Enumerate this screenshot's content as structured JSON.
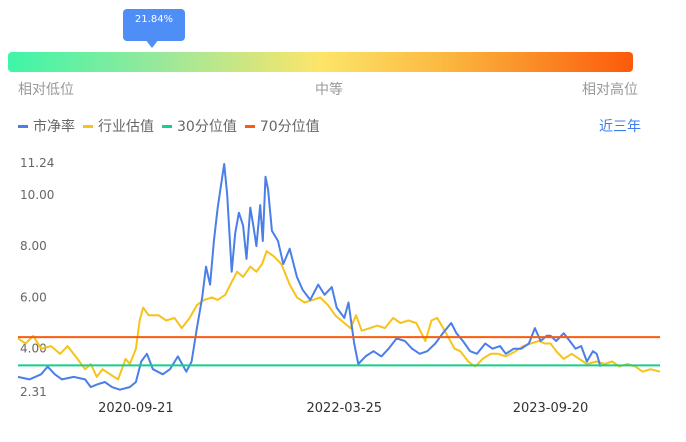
{
  "gauge": {
    "percentile_text": "21.84%",
    "percentile": 21.84,
    "low_label": "相对低位",
    "mid_label": "中等",
    "high_label": "相对高位"
  },
  "legend": {
    "pb_label": "市净率",
    "industry_label": "行业估值",
    "p30_label": "30分位值",
    "p70_label": "70分位值"
  },
  "range_button": "近三年",
  "colors": {
    "pb": "#4a7ee8",
    "industry": "#f7c31b",
    "p30": "#15cf8b",
    "p70": "#fa5b0c",
    "tooltip": "#4f8ef7"
  },
  "chart_data": {
    "type": "line",
    "ylim": [
      2.31,
      11.24
    ],
    "y_ticks": [
      "11.24",
      "10.00",
      "8.00",
      "6.00",
      "4.00",
      "2.31"
    ],
    "x_ticks": [
      {
        "label": "2020-09-21",
        "date": "2020-09-21"
      },
      {
        "label": "2022-03-25",
        "date": "2022-03-25"
      },
      {
        "label": "2023-09-20",
        "date": "2023-09-20"
      }
    ],
    "x_range": [
      "2019-11-15",
      "2024-07-05"
    ],
    "reference_lines": [
      {
        "name": "30分位值",
        "value": 3.35
      },
      {
        "name": "70分位值",
        "value": 4.45
      }
    ],
    "series": [
      {
        "name": "市净率",
        "points": [
          [
            "2019-11-15",
            2.9
          ],
          [
            "2019-12-15",
            2.8
          ],
          [
            "2020-01-15",
            3.0
          ],
          [
            "2020-02-01",
            3.3
          ],
          [
            "2020-02-20",
            3.0
          ],
          [
            "2020-03-10",
            2.8
          ],
          [
            "2020-04-10",
            2.9
          ],
          [
            "2020-05-10",
            2.8
          ],
          [
            "2020-05-25",
            2.5
          ],
          [
            "2020-06-10",
            2.6
          ],
          [
            "2020-07-01",
            2.7
          ],
          [
            "2020-07-20",
            2.5
          ],
          [
            "2020-08-10",
            2.4
          ],
          [
            "2020-09-05",
            2.5
          ],
          [
            "2020-09-21",
            2.7
          ],
          [
            "2020-10-05",
            3.5
          ],
          [
            "2020-10-20",
            3.8
          ],
          [
            "2020-11-05",
            3.2
          ],
          [
            "2020-12-01",
            3.0
          ],
          [
            "2020-12-20",
            3.2
          ],
          [
            "2021-01-10",
            3.7
          ],
          [
            "2021-02-01",
            3.1
          ],
          [
            "2021-02-15",
            3.5
          ],
          [
            "2021-03-01",
            4.8
          ],
          [
            "2021-03-15",
            6.0
          ],
          [
            "2021-03-25",
            7.2
          ],
          [
            "2021-04-05",
            6.5
          ],
          [
            "2021-04-15",
            8.2
          ],
          [
            "2021-04-25",
            9.5
          ],
          [
            "2021-05-05",
            10.5
          ],
          [
            "2021-05-12",
            11.2
          ],
          [
            "2021-05-20",
            10.0
          ],
          [
            "2021-06-01",
            7.0
          ],
          [
            "2021-06-10",
            8.5
          ],
          [
            "2021-06-20",
            9.3
          ],
          [
            "2021-07-01",
            8.8
          ],
          [
            "2021-07-10",
            7.5
          ],
          [
            "2021-07-20",
            9.5
          ],
          [
            "2021-07-28",
            8.8
          ],
          [
            "2021-08-05",
            8.0
          ],
          [
            "2021-08-15",
            9.6
          ],
          [
            "2021-08-22",
            8.2
          ],
          [
            "2021-08-29",
            10.7
          ],
          [
            "2021-09-05",
            10.2
          ],
          [
            "2021-09-15",
            8.6
          ],
          [
            "2021-10-01",
            8.2
          ],
          [
            "2021-10-15",
            7.3
          ],
          [
            "2021-11-01",
            7.9
          ],
          [
            "2021-11-20",
            6.8
          ],
          [
            "2021-12-05",
            6.3
          ],
          [
            "2021-12-25",
            5.9
          ],
          [
            "2022-01-15",
            6.5
          ],
          [
            "2022-02-01",
            6.1
          ],
          [
            "2022-02-20",
            6.4
          ],
          [
            "2022-03-05",
            5.6
          ],
          [
            "2022-03-25",
            5.2
          ],
          [
            "2022-04-05",
            5.8
          ],
          [
            "2022-04-20",
            4.2
          ],
          [
            "2022-05-01",
            3.4
          ],
          [
            "2022-05-20",
            3.7
          ],
          [
            "2022-06-10",
            3.9
          ],
          [
            "2022-07-01",
            3.7
          ],
          [
            "2022-07-20",
            4.0
          ],
          [
            "2022-08-10",
            4.4
          ],
          [
            "2022-09-01",
            4.3
          ],
          [
            "2022-09-20",
            4.0
          ],
          [
            "2022-10-10",
            3.8
          ],
          [
            "2022-10-30",
            3.9
          ],
          [
            "2022-11-20",
            4.2
          ],
          [
            "2022-12-10",
            4.6
          ],
          [
            "2023-01-01",
            5.0
          ],
          [
            "2023-01-15",
            4.6
          ],
          [
            "2023-02-01",
            4.3
          ],
          [
            "2023-02-20",
            3.9
          ],
          [
            "2023-03-10",
            3.8
          ],
          [
            "2023-04-01",
            4.2
          ],
          [
            "2023-04-20",
            4.0
          ],
          [
            "2023-05-10",
            4.1
          ],
          [
            "2023-05-25",
            3.8
          ],
          [
            "2023-06-15",
            4.0
          ],
          [
            "2023-07-05",
            4.0
          ],
          [
            "2023-07-25",
            4.2
          ],
          [
            "2023-08-10",
            4.8
          ],
          [
            "2023-08-25",
            4.3
          ],
          [
            "2023-09-10",
            4.5
          ],
          [
            "2023-09-20",
            4.5
          ],
          [
            "2023-10-05",
            4.3
          ],
          [
            "2023-10-25",
            4.6
          ],
          [
            "2023-11-10",
            4.3
          ],
          [
            "2023-11-25",
            4.0
          ],
          [
            "2023-12-10",
            4.1
          ],
          [
            "2023-12-25",
            3.5
          ],
          [
            "2024-01-10",
            3.9
          ],
          [
            "2024-01-20",
            3.8
          ],
          [
            "2024-01-30",
            3.3
          ]
        ]
      },
      {
        "name": "行业估值",
        "points": [
          [
            "2019-11-15",
            4.4
          ],
          [
            "2019-12-05",
            4.2
          ],
          [
            "2019-12-25",
            4.5
          ],
          [
            "2020-01-15",
            4.0
          ],
          [
            "2020-02-10",
            4.1
          ],
          [
            "2020-03-05",
            3.8
          ],
          [
            "2020-03-25",
            4.1
          ],
          [
            "2020-04-20",
            3.6
          ],
          [
            "2020-05-10",
            3.2
          ],
          [
            "2020-05-25",
            3.4
          ],
          [
            "2020-06-10",
            2.9
          ],
          [
            "2020-06-25",
            3.2
          ],
          [
            "2020-07-15",
            3.0
          ],
          [
            "2020-08-05",
            2.8
          ],
          [
            "2020-08-25",
            3.6
          ],
          [
            "2020-09-05",
            3.4
          ],
          [
            "2020-09-21",
            4.0
          ],
          [
            "2020-10-01",
            5.1
          ],
          [
            "2020-10-10",
            5.6
          ],
          [
            "2020-10-25",
            5.3
          ],
          [
            "2020-11-20",
            5.3
          ],
          [
            "2020-12-10",
            5.1
          ],
          [
            "2021-01-01",
            5.2
          ],
          [
            "2021-01-20",
            4.8
          ],
          [
            "2021-02-10",
            5.2
          ],
          [
            "2021-03-01",
            5.7
          ],
          [
            "2021-03-20",
            5.9
          ],
          [
            "2021-04-10",
            6.0
          ],
          [
            "2021-04-25",
            5.9
          ],
          [
            "2021-05-15",
            6.1
          ],
          [
            "2021-06-01",
            6.6
          ],
          [
            "2021-06-15",
            7.0
          ],
          [
            "2021-07-01",
            6.8
          ],
          [
            "2021-07-20",
            7.2
          ],
          [
            "2021-08-05",
            7.0
          ],
          [
            "2021-08-20",
            7.3
          ],
          [
            "2021-09-01",
            7.8
          ],
          [
            "2021-09-20",
            7.6
          ],
          [
            "2021-10-10",
            7.3
          ],
          [
            "2021-11-01",
            6.5
          ],
          [
            "2021-11-20",
            6.0
          ],
          [
            "2021-12-10",
            5.8
          ],
          [
            "2022-01-01",
            5.9
          ],
          [
            "2022-01-20",
            6.0
          ],
          [
            "2022-02-10",
            5.7
          ],
          [
            "2022-03-01",
            5.3
          ],
          [
            "2022-03-25",
            5.0
          ],
          [
            "2022-04-10",
            4.8
          ],
          [
            "2022-04-25",
            5.3
          ],
          [
            "2022-05-10",
            4.7
          ],
          [
            "2022-06-01",
            4.8
          ],
          [
            "2022-06-20",
            4.9
          ],
          [
            "2022-07-10",
            4.8
          ],
          [
            "2022-08-01",
            5.2
          ],
          [
            "2022-08-20",
            5.0
          ],
          [
            "2022-09-10",
            5.1
          ],
          [
            "2022-10-01",
            5.0
          ],
          [
            "2022-10-25",
            4.3
          ],
          [
            "2022-11-10",
            5.1
          ],
          [
            "2022-11-25",
            5.2
          ],
          [
            "2022-12-15",
            4.7
          ],
          [
            "2023-01-10",
            4.0
          ],
          [
            "2023-01-25",
            3.9
          ],
          [
            "2023-02-15",
            3.5
          ],
          [
            "2023-03-05",
            3.3
          ],
          [
            "2023-03-25",
            3.6
          ],
          [
            "2023-04-15",
            3.8
          ],
          [
            "2023-05-05",
            3.8
          ],
          [
            "2023-05-25",
            3.7
          ],
          [
            "2023-06-20",
            3.9
          ],
          [
            "2023-07-10",
            4.1
          ],
          [
            "2023-07-30",
            4.2
          ],
          [
            "2023-08-20",
            4.3
          ],
          [
            "2023-09-05",
            4.2
          ],
          [
            "2023-09-20",
            4.2
          ],
          [
            "2023-10-05",
            3.9
          ],
          [
            "2023-10-25",
            3.6
          ],
          [
            "2023-11-15",
            3.8
          ],
          [
            "2023-12-05",
            3.6
          ],
          [
            "2023-12-25",
            3.4
          ],
          [
            "2024-01-20",
            3.5
          ],
          [
            "2024-02-10",
            3.4
          ],
          [
            "2024-03-01",
            3.5
          ],
          [
            "2024-03-20",
            3.3
          ],
          [
            "2024-04-10",
            3.4
          ],
          [
            "2024-05-01",
            3.3
          ],
          [
            "2024-05-20",
            3.1
          ],
          [
            "2024-06-10",
            3.2
          ],
          [
            "2024-07-05",
            3.1
          ]
        ]
      }
    ]
  }
}
